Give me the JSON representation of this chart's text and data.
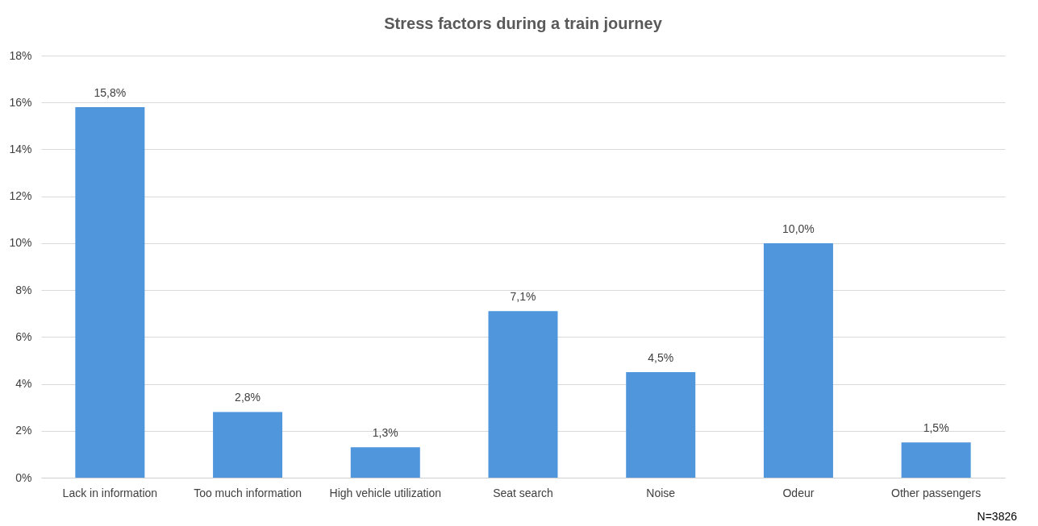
{
  "chart_data": {
    "type": "bar",
    "title": "Stress factors during a train journey",
    "categories": [
      "Lack in information",
      "Too much information",
      "High vehicle utilization",
      "Seat search",
      "Noise",
      "Odeur",
      "Other passengers"
    ],
    "values": [
      15.8,
      2.8,
      1.3,
      7.1,
      4.5,
      10.0,
      1.5
    ],
    "value_labels": [
      "15,8%",
      "2,8%",
      "1,3%",
      "7,1%",
      "4,5%",
      "10,0%",
      "1,5%"
    ],
    "color": "#4f96dc",
    "ylim": [
      0,
      18
    ],
    "yticks": [
      {
        "value": 0,
        "label": "0%"
      },
      {
        "value": 2,
        "label": "2%"
      },
      {
        "value": 4,
        "label": "4%"
      },
      {
        "value": 6,
        "label": "6%"
      },
      {
        "value": 8,
        "label": "8%"
      },
      {
        "value": 10,
        "label": "10%"
      },
      {
        "value": 12,
        "label": "12%"
      },
      {
        "value": 14,
        "label": "14%"
      },
      {
        "value": 16,
        "label": "16%"
      },
      {
        "value": 18,
        "label": "18%"
      }
    ],
    "grid": "y",
    "annotations": [
      "N=3826"
    ]
  }
}
